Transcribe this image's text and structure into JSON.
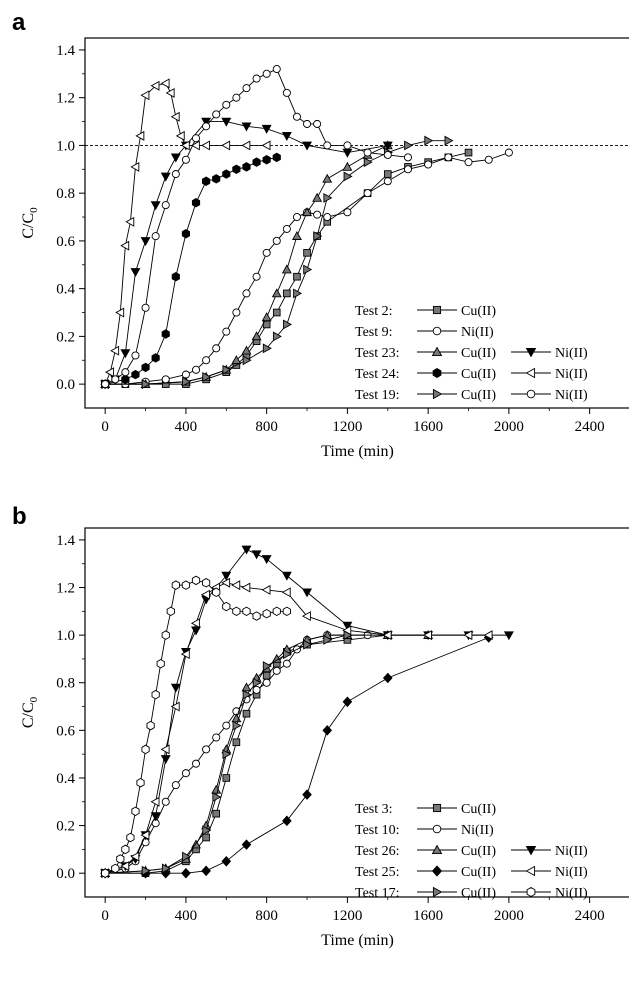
{
  "chart_data": [
    {
      "panel_label": "a",
      "type": "line",
      "xlabel": "Time (min)",
      "ylabel": "C/C",
      "ylabel_sub": "0",
      "xlim": [
        -100,
        2600
      ],
      "ylim": [
        -0.1,
        1.45
      ],
      "xticks": [
        "0",
        "400",
        "800",
        "1200",
        "1600",
        "2000",
        "2400"
      ],
      "yticks": [
        "0.0",
        "0.2",
        "0.4",
        "0.6",
        "0.8",
        "1.0",
        "1.2",
        "1.4"
      ],
      "reference_line_y": 1.0,
      "legend": [
        {
          "test": "Test 2:",
          "entries": [
            {
              "label": "Cu(II)",
              "marker": "square",
              "fill": "#777777"
            }
          ]
        },
        {
          "test": "Test 9:",
          "entries": [
            {
              "label": "Ni(II)",
              "marker": "circle",
              "fill": "none"
            }
          ]
        },
        {
          "test": "Test 23:",
          "entries": [
            {
              "label": "Cu(II)",
              "marker": "triangle-up",
              "fill": "#777777"
            },
            {
              "label": "Ni(II)",
              "marker": "triangle-down",
              "fill": "#000000"
            }
          ]
        },
        {
          "test": "Test 24:",
          "entries": [
            {
              "label": "Cu(II)",
              "marker": "hexagon",
              "fill": "#000000"
            },
            {
              "label": "Ni(II)",
              "marker": "triangle-left",
              "fill": "none"
            }
          ]
        },
        {
          "test": "Test 19:",
          "entries": [
            {
              "label": "Cu(II)",
              "marker": "triangle-right",
              "fill": "#777777"
            },
            {
              "label": "Ni(II)",
              "marker": "circle",
              "fill": "none"
            }
          ]
        }
      ],
      "series": [
        {
          "name": "Test 2: Cu(II)",
          "marker": "square",
          "fill": "#777777",
          "x": [
            0,
            100,
            200,
            300,
            400,
            500,
            600,
            650,
            700,
            750,
            800,
            850,
            900,
            950,
            1000,
            1050,
            1100,
            1300,
            1400,
            1500,
            1600,
            1700,
            1800
          ],
          "y": [
            0,
            0,
            0,
            0,
            0,
            0.02,
            0.05,
            0.08,
            0.12,
            0.18,
            0.25,
            0.3,
            0.38,
            0.45,
            0.55,
            0.62,
            0.68,
            0.8,
            0.88,
            0.91,
            0.93,
            0.95,
            0.97
          ]
        },
        {
          "name": "Test 9: Ni(II)",
          "marker": "circle",
          "fill": "none",
          "x": [
            0,
            100,
            200,
            300,
            400,
            450,
            500,
            550,
            600,
            650,
            700,
            750,
            800,
            850,
            900,
            950,
            1000,
            1050,
            1100,
            1200,
            1300,
            1400,
            1500,
            1600,
            1700,
            1800,
            1900,
            2000
          ],
          "y": [
            0,
            0,
            0.01,
            0.02,
            0.04,
            0.06,
            0.1,
            0.15,
            0.22,
            0.3,
            0.38,
            0.45,
            0.55,
            0.6,
            0.65,
            0.7,
            0.72,
            0.71,
            0.7,
            0.72,
            0.8,
            0.85,
            0.9,
            0.92,
            0.95,
            0.93,
            0.94,
            0.97
          ]
        },
        {
          "name": "Test 23: Cu(II)",
          "marker": "triangle-up",
          "fill": "#777777",
          "x": [
            0,
            200,
            400,
            500,
            600,
            650,
            700,
            750,
            800,
            850,
            900,
            950,
            1000,
            1050,
            1100,
            1200,
            1300,
            1400
          ],
          "y": [
            0,
            0,
            0.01,
            0.03,
            0.06,
            0.1,
            0.14,
            0.2,
            0.28,
            0.38,
            0.48,
            0.62,
            0.72,
            0.78,
            0.86,
            0.91,
            0.96,
            1.0
          ]
        },
        {
          "name": "Test 23: Ni(II)",
          "marker": "triangle-down",
          "fill": "#000000",
          "x": [
            0,
            50,
            100,
            150,
            200,
            250,
            300,
            350,
            400,
            500,
            600,
            700,
            800,
            900,
            1000,
            1200,
            1400
          ],
          "y": [
            0,
            0.02,
            0.13,
            0.47,
            0.6,
            0.75,
            0.87,
            0.95,
            1.0,
            1.1,
            1.1,
            1.08,
            1.07,
            1.04,
            1.0,
            0.97,
            1.0
          ]
        },
        {
          "name": "Test 24: Cu(II)",
          "marker": "hexagon",
          "fill": "#000000",
          "x": [
            0,
            100,
            150,
            200,
            250,
            300,
            350,
            400,
            450,
            500,
            550,
            600,
            650,
            700,
            750,
            800,
            850
          ],
          "y": [
            0,
            0.02,
            0.04,
            0.07,
            0.11,
            0.21,
            0.45,
            0.63,
            0.76,
            0.85,
            0.86,
            0.88,
            0.9,
            0.91,
            0.93,
            0.94,
            0.95
          ]
        },
        {
          "name": "Test 24: Ni(II)",
          "marker": "triangle-left",
          "fill": "none",
          "x": [
            0,
            25,
            50,
            75,
            100,
            125,
            150,
            175,
            200,
            250,
            300,
            325,
            350,
            375,
            400,
            450,
            500,
            600,
            700,
            800
          ],
          "y": [
            0,
            0.05,
            0.14,
            0.3,
            0.58,
            0.68,
            0.91,
            1.04,
            1.21,
            1.25,
            1.26,
            1.22,
            1.12,
            1.04,
            1.0,
            1.0,
            1.0,
            1.0,
            1.0,
            1.0
          ]
        },
        {
          "name": "Test 19: Cu(II)",
          "marker": "triangle-right",
          "fill": "#777777",
          "x": [
            0,
            200,
            400,
            500,
            600,
            700,
            800,
            850,
            900,
            950,
            1000,
            1050,
            1100,
            1200,
            1300,
            1400,
            1500,
            1600,
            1700
          ],
          "y": [
            0,
            0,
            0.01,
            0.03,
            0.06,
            0.1,
            0.15,
            0.2,
            0.25,
            0.38,
            0.48,
            0.62,
            0.78,
            0.87,
            0.93,
            0.97,
            1.0,
            1.02,
            1.02
          ]
        },
        {
          "name": "Test 19: Ni(II)",
          "marker": "circle",
          "fill": "none",
          "x": [
            0,
            50,
            100,
            150,
            200,
            250,
            300,
            350,
            400,
            450,
            500,
            550,
            600,
            650,
            700,
            750,
            800,
            850,
            900,
            950,
            1000,
            1050,
            1100,
            1200,
            1300,
            1400,
            1500
          ],
          "y": [
            0,
            0.02,
            0.05,
            0.12,
            0.32,
            0.62,
            0.75,
            0.88,
            0.94,
            1.03,
            1.08,
            1.13,
            1.17,
            1.2,
            1.24,
            1.28,
            1.3,
            1.32,
            1.22,
            1.12,
            1.09,
            1.09,
            1.0,
            1.0,
            0.97,
            0.96,
            0.95
          ]
        }
      ]
    },
    {
      "panel_label": "b",
      "type": "line",
      "xlabel": "Time (min)",
      "ylabel": "C/C",
      "ylabel_sub": "0",
      "xlim": [
        -100,
        2600
      ],
      "ylim": [
        -0.1,
        1.45
      ],
      "xticks": [
        "0",
        "400",
        "800",
        "1200",
        "1600",
        "2000",
        "2400"
      ],
      "yticks": [
        "0.0",
        "0.2",
        "0.4",
        "0.6",
        "0.8",
        "1.0",
        "1.2",
        "1.4"
      ],
      "legend": [
        {
          "test": "Test 3:",
          "entries": [
            {
              "label": "Cu(II)",
              "marker": "square",
              "fill": "#777777"
            }
          ]
        },
        {
          "test": "Test 10:",
          "entries": [
            {
              "label": "Ni(II)",
              "marker": "circle",
              "fill": "none"
            }
          ]
        },
        {
          "test": "Test 26:",
          "entries": [
            {
              "label": "Cu(II)",
              "marker": "triangle-up",
              "fill": "#777777"
            },
            {
              "label": "Ni(II)",
              "marker": "triangle-down",
              "fill": "#000000"
            }
          ]
        },
        {
          "test": "Test 25:",
          "entries": [
            {
              "label": "Cu(II)",
              "marker": "diamond",
              "fill": "#000000"
            },
            {
              "label": "Ni(II)",
              "marker": "triangle-left",
              "fill": "none"
            }
          ]
        },
        {
          "test": "Test 17:",
          "entries": [
            {
              "label": "Cu(II)",
              "marker": "triangle-right",
              "fill": "#777777"
            },
            {
              "label": "Ni(II)",
              "marker": "hexagon",
              "fill": "none"
            }
          ]
        }
      ],
      "series": [
        {
          "name": "Test 3: Cu(II)",
          "marker": "square",
          "fill": "#777777",
          "x": [
            0,
            200,
            300,
            400,
            450,
            500,
            550,
            600,
            650,
            700,
            750,
            800,
            850,
            900,
            1000,
            1200,
            1400
          ],
          "y": [
            0,
            0,
            0.01,
            0.05,
            0.1,
            0.15,
            0.25,
            0.4,
            0.55,
            0.67,
            0.75,
            0.83,
            0.88,
            0.93,
            0.96,
            0.98,
            1.0
          ]
        },
        {
          "name": "Test 10: Ni(II)",
          "marker": "circle",
          "fill": "none",
          "x": [
            0,
            100,
            150,
            200,
            250,
            300,
            350,
            400,
            450,
            500,
            550,
            600,
            650,
            700,
            750,
            800,
            850,
            900,
            950,
            1000,
            1100,
            1200,
            1300
          ],
          "y": [
            0,
            0.02,
            0.05,
            0.13,
            0.21,
            0.3,
            0.37,
            0.42,
            0.46,
            0.52,
            0.57,
            0.62,
            0.68,
            0.73,
            0.77,
            0.8,
            0.85,
            0.88,
            0.94,
            0.98,
            1.0,
            1.0,
            1.0
          ]
        },
        {
          "name": "Test 26: Cu(II)",
          "marker": "triangle-up",
          "fill": "#777777",
          "x": [
            0,
            200,
            300,
            400,
            450,
            500,
            550,
            600,
            650,
            700,
            750,
            800,
            850,
            900,
            1000,
            1100,
            1200,
            1400,
            1600
          ],
          "y": [
            0,
            0.01,
            0.02,
            0.06,
            0.12,
            0.2,
            0.35,
            0.52,
            0.65,
            0.78,
            0.82,
            0.86,
            0.9,
            0.94,
            0.98,
            1.0,
            1.0,
            1.0,
            1.0
          ]
        },
        {
          "name": "Test 26: Ni(II)",
          "marker": "triangle-down",
          "fill": "#000000",
          "x": [
            0,
            100,
            150,
            200,
            250,
            300,
            350,
            400,
            450,
            500,
            600,
            700,
            750,
            800,
            900,
            1000,
            1200,
            1400,
            1600,
            1800,
            2000
          ],
          "y": [
            0,
            0.03,
            0.06,
            0.16,
            0.24,
            0.48,
            0.78,
            0.93,
            1.02,
            1.15,
            1.25,
            1.36,
            1.34,
            1.32,
            1.25,
            1.18,
            1.04,
            1.0,
            1.0,
            1.0,
            1.0
          ]
        },
        {
          "name": "Test 25: Cu(II)",
          "marker": "diamond",
          "fill": "#000000",
          "x": [
            0,
            200,
            300,
            400,
            500,
            600,
            700,
            900,
            1000,
            1100,
            1200,
            1400,
            1900
          ],
          "y": [
            0,
            0,
            0,
            0,
            0.01,
            0.05,
            0.12,
            0.22,
            0.33,
            0.6,
            0.72,
            0.82,
            0.99
          ]
        },
        {
          "name": "Test 25: Ni(II)",
          "marker": "triangle-left",
          "fill": "none",
          "x": [
            0,
            100,
            150,
            200,
            250,
            300,
            350,
            400,
            450,
            500,
            550,
            600,
            650,
            700,
            800,
            900,
            1000,
            1200,
            1400,
            1600,
            1800,
            1900
          ],
          "y": [
            0,
            0.03,
            0.07,
            0.16,
            0.3,
            0.52,
            0.7,
            0.92,
            1.05,
            1.17,
            1.2,
            1.22,
            1.21,
            1.2,
            1.19,
            1.18,
            1.08,
            1.02,
            1.0,
            1.0,
            1.0,
            1.0
          ]
        },
        {
          "name": "Test 17: Cu(II)",
          "marker": "triangle-right",
          "fill": "#777777",
          "x": [
            0,
            200,
            300,
            400,
            500,
            550,
            600,
            650,
            700,
            750,
            800,
            900,
            1000,
            1100,
            1200
          ],
          "y": [
            0,
            0.01,
            0.02,
            0.07,
            0.18,
            0.32,
            0.5,
            0.62,
            0.75,
            0.8,
            0.87,
            0.92,
            0.96,
            0.98,
            1.0
          ]
        },
        {
          "name": "Test 17: Ni(II)",
          "marker": "hexagon",
          "fill": "none",
          "x": [
            0,
            50,
            75,
            100,
            125,
            150,
            175,
            200,
            225,
            250,
            275,
            300,
            325,
            350,
            400,
            450,
            500,
            550,
            600,
            650,
            700,
            750,
            800,
            850,
            900
          ],
          "y": [
            0,
            0.02,
            0.06,
            0.1,
            0.15,
            0.26,
            0.38,
            0.52,
            0.62,
            0.75,
            0.88,
            1.0,
            1.1,
            1.21,
            1.21,
            1.23,
            1.22,
            1.18,
            1.12,
            1.1,
            1.1,
            1.08,
            1.09,
            1.1,
            1.1
          ]
        }
      ]
    }
  ]
}
